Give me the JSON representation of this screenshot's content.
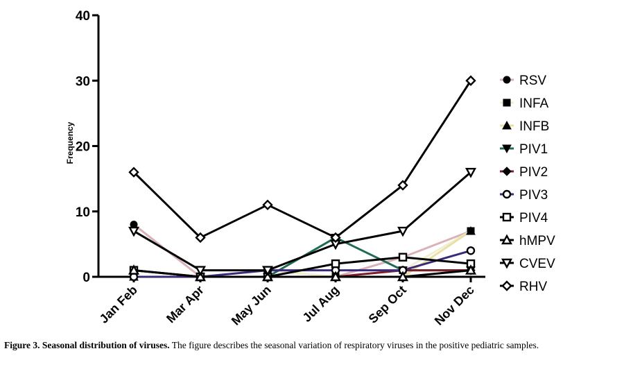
{
  "chart_data": {
    "type": "line",
    "ylabel": "Frequency",
    "xlabel": "",
    "ylim": [
      0,
      40
    ],
    "yticks": [
      0,
      10,
      20,
      30,
      40
    ],
    "categories": [
      "Jan Feb",
      "Mar Apr",
      "May Jun",
      "Jul Aug",
      "Sep Oct",
      "Nov Dec"
    ],
    "legend_position": "right",
    "grid": false,
    "series": [
      {
        "name": "RSV",
        "marker": "circle",
        "color": "#d9b1b6",
        "values": [
          8,
          0,
          1,
          0,
          3,
          7
        ]
      },
      {
        "name": "INFA",
        "marker": "square",
        "color": "#f2efd0",
        "values": [
          1,
          0,
          1,
          0,
          1,
          7
        ]
      },
      {
        "name": "INFB",
        "marker": "triangle-up",
        "color": "#e8e0a8",
        "values": [
          0,
          0,
          0,
          0,
          0,
          7
        ]
      },
      {
        "name": "PIV1",
        "marker": "triangle-down",
        "color": "#1f6b55",
        "values": [
          0,
          0,
          0,
          6,
          1,
          1
        ]
      },
      {
        "name": "PIV2",
        "marker": "diamond",
        "color": "#7a1e2c",
        "values": [
          0,
          0,
          0,
          0,
          1,
          1
        ]
      },
      {
        "name": "PIV3",
        "marker": "circle-open",
        "color": "#3b2a7a",
        "values": [
          0,
          0,
          1,
          1,
          1,
          4
        ]
      },
      {
        "name": "PIV4",
        "marker": "square-open",
        "color": "#000000",
        "values": [
          1,
          0,
          0,
          2,
          3,
          2
        ]
      },
      {
        "name": "hMPV",
        "marker": "triangle-up-open",
        "color": "#000000",
        "values": [
          1,
          0,
          0,
          0,
          0,
          1
        ]
      },
      {
        "name": "CVEV",
        "marker": "triangle-down-open",
        "color": "#000000",
        "values": [
          7,
          1,
          1,
          5,
          7,
          16
        ]
      },
      {
        "name": "RHV",
        "marker": "diamond-open",
        "color": "#000000",
        "values": [
          16,
          6,
          11,
          6,
          14,
          30
        ]
      }
    ]
  },
  "caption": {
    "label": "Figure 3. Seasonal distribution of viruses.",
    "text": " The figure describes the seasonal variation of respiratory viruses in the positive pediatric samples."
  }
}
